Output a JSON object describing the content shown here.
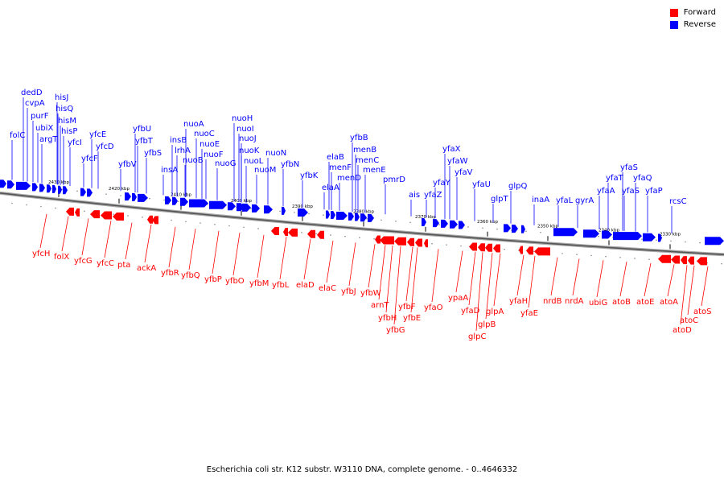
{
  "legend": {
    "forward": {
      "label": "Forward",
      "color": "#ff0000"
    },
    "reverse": {
      "label": "Reverse",
      "color": "#0000ff"
    }
  },
  "caption": "Escherichia coli str. K12 substr. W3110 DNA, complete genome. - 0..4646332",
  "ticks": [
    "2430 kbp",
    "2420 kbp",
    "2410 kbp",
    "2400 kbp",
    "2390 kbp",
    "2380 kbp",
    "2370 kbp",
    "2360 kbp",
    "2350 kbp",
    "2340 kbp",
    "2330 kbp"
  ],
  "reverse_genes": [
    "folC",
    "dedD",
    "cvpA",
    "purF",
    "ubiX",
    "argT",
    "hisJ",
    "hisQ",
    "hisM",
    "hisP",
    "yfcI",
    "yfcE",
    "yfcF",
    "yfcD",
    "yfbV",
    "yfbU",
    "yfbT",
    "yfbS",
    "insA",
    "insB",
    "lrhA",
    "nuoA",
    "nuoB",
    "nuoC",
    "nuoE",
    "nuoF",
    "nuoG",
    "nuoH",
    "nuoI",
    "nuoJ",
    "nuoK",
    "nuoL",
    "nuoM",
    "nuoN",
    "yfbN",
    "yfbK",
    "elaA",
    "elaB",
    "menF",
    "menD",
    "yfbB",
    "menB",
    "menC",
    "menE",
    "pmrD",
    "ais",
    "yfaZ",
    "yfaY",
    "yfaX",
    "yfaW",
    "yfaV",
    "yfaU",
    "glpT",
    "glpQ",
    "inaA",
    "yfaL",
    "gyrA",
    "yfaA",
    "yfaT",
    "yfaS",
    "yfaS",
    "yfaQ",
    "yfaP",
    "rcsC"
  ],
  "forward_genes": [
    "yfcH",
    "folX",
    "yfcG",
    "yfcC",
    "pta",
    "ackA",
    "yfbR",
    "yfbQ",
    "yfbP",
    "yfbO",
    "yfbM",
    "yfbL",
    "elaD",
    "elaC",
    "yfbJ",
    "yfbW",
    "arnT",
    "yfbH",
    "yfbG",
    "yfbF",
    "yfbE",
    "yfaO",
    "ypaA",
    "yfaD",
    "glpB",
    "glpC",
    "glpA",
    "yfaH",
    "yfaE",
    "nrdB",
    "nrdA",
    "ubiG",
    "atoB",
    "atoE",
    "atoA",
    "atoC",
    "atoD",
    "atoS"
  ]
}
